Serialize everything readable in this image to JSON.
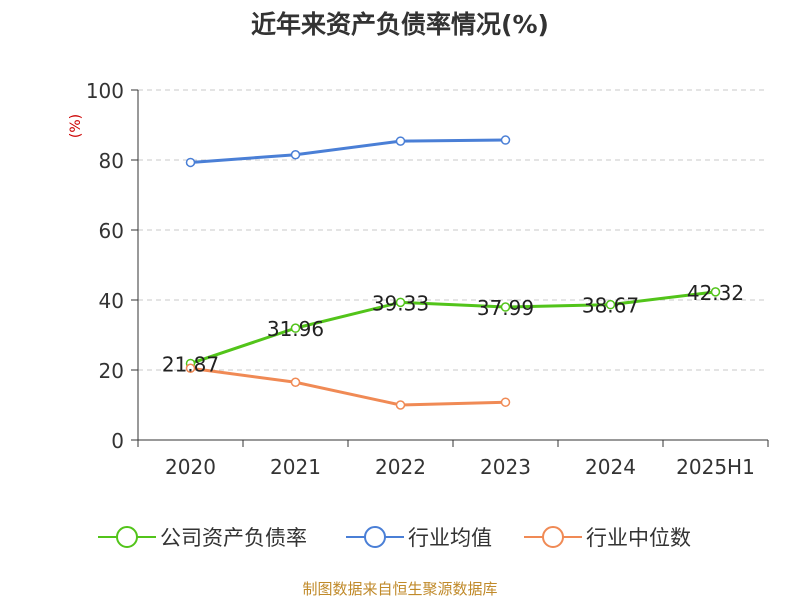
{
  "chart_data": {
    "type": "line",
    "title": "近年来资产负债率情况(%)",
    "ylabel": "(%)",
    "categories": [
      "2020",
      "2021",
      "2022",
      "2023",
      "2024",
      "2025H1"
    ],
    "ylim": [
      0,
      100
    ],
    "yticks": [
      0,
      20,
      40,
      60,
      80,
      100
    ],
    "grid": true,
    "legend_position": "bottom",
    "series": [
      {
        "name": "公司资产负债率",
        "color": "#52c41a",
        "labels": true,
        "values": [
          21.87,
          31.96,
          39.33,
          37.99,
          38.67,
          42.32
        ]
      },
      {
        "name": "行业均值",
        "color": "#4a7fd6",
        "labels": false,
        "values": [
          79.3,
          81.5,
          85.4,
          85.7,
          null,
          null
        ]
      },
      {
        "name": "行业中位数",
        "color": "#f08a55",
        "labels": false,
        "values": [
          20.5,
          16.5,
          10.0,
          10.8,
          null,
          null
        ]
      }
    ]
  },
  "source": "制图数据来自恒生聚源数据库"
}
